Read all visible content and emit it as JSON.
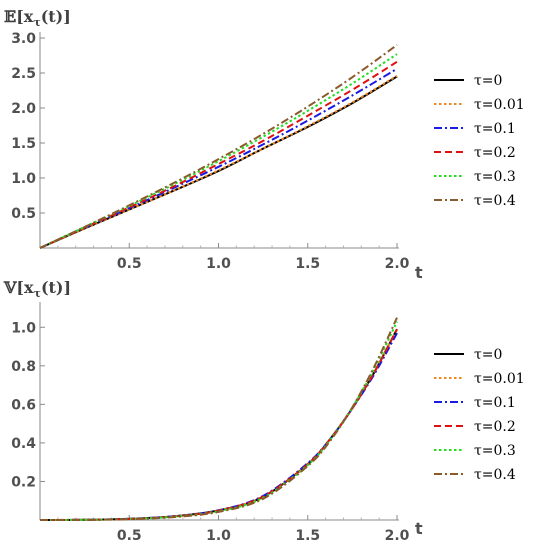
{
  "chart_data": [
    {
      "type": "line",
      "title": "𝔼[x",
      "title_sub": "τ",
      "title_end": "(t)]",
      "xlabel": "t",
      "xlim": [
        0,
        2.0
      ],
      "ylim": [
        0,
        3.0
      ],
      "x_ticks": [
        0.5,
        1.0,
        1.5,
        2.0
      ],
      "x_tick_labels": [
        "0.5",
        "1.0",
        "1.5",
        "2.0"
      ],
      "y_ticks": [
        0.5,
        1.0,
        1.5,
        2.0,
        2.5,
        3.0
      ],
      "y_tick_labels": [
        "0.5",
        "1.0",
        "1.5",
        "2.0",
        "2.5",
        "3.0"
      ],
      "legend_position": "right",
      "x": [
        0,
        0.25,
        0.5,
        0.75,
        1.0,
        1.25,
        1.5,
        1.75,
        2.0
      ],
      "series": [
        {
          "name": "τ=0",
          "color": "#000000",
          "dash": "solid",
          "values": [
            0,
            0.28,
            0.55,
            0.82,
            1.1,
            1.42,
            1.73,
            2.07,
            2.45
          ]
        },
        {
          "name": "τ=0.01",
          "color": "#ee8822",
          "dash": "dotted",
          "values": [
            0,
            0.28,
            0.55,
            0.82,
            1.11,
            1.42,
            1.74,
            2.08,
            2.46
          ]
        },
        {
          "name": "τ=0.1",
          "color": "#1a1ae6",
          "dash": "dashdot",
          "values": [
            0,
            0.29,
            0.57,
            0.86,
            1.16,
            1.48,
            1.82,
            2.18,
            2.56
          ]
        },
        {
          "name": "τ=0.2",
          "color": "#dd1111",
          "dash": "dashed",
          "values": [
            0,
            0.29,
            0.58,
            0.88,
            1.2,
            1.53,
            1.89,
            2.26,
            2.66
          ]
        },
        {
          "name": "τ=0.3",
          "color": "#22dd22",
          "dash": "dotted",
          "values": [
            0,
            0.3,
            0.6,
            0.91,
            1.24,
            1.59,
            1.96,
            2.35,
            2.77
          ]
        },
        {
          "name": "τ=0.4",
          "color": "#8b5a2b",
          "dash": "dashdot",
          "values": [
            0,
            0.3,
            0.61,
            0.93,
            1.27,
            1.63,
            2.02,
            2.44,
            2.9
          ]
        }
      ]
    },
    {
      "type": "line",
      "title": "𝕍[x",
      "title_sub": "τ",
      "title_end": "(t)]",
      "xlabel": "t",
      "xlim": [
        0,
        2.0
      ],
      "ylim": [
        0,
        1.1
      ],
      "x_ticks": [
        0.5,
        1.0,
        1.5,
        2.0
      ],
      "x_tick_labels": [
        "0.5",
        "1.0",
        "1.5",
        "2.0"
      ],
      "y_ticks": [
        0.2,
        0.4,
        0.6,
        0.8,
        1.0
      ],
      "y_tick_labels": [
        "0.2",
        "0.4",
        "0.6",
        "0.8",
        "1.0"
      ],
      "legend_position": "right",
      "x": [
        0,
        0.25,
        0.5,
        0.75,
        1.0,
        1.25,
        1.5,
        1.625,
        1.75,
        1.875,
        2.0
      ],
      "series": [
        {
          "name": "τ=0",
          "color": "#000000",
          "dash": "solid",
          "values": [
            0,
            0.001,
            0.006,
            0.019,
            0.05,
            0.12,
            0.29,
            0.42,
            0.58,
            0.77,
            0.99
          ]
        },
        {
          "name": "τ=0.01",
          "color": "#ee8822",
          "dash": "dotted",
          "values": [
            0,
            0.001,
            0.006,
            0.019,
            0.05,
            0.12,
            0.29,
            0.42,
            0.58,
            0.77,
            0.99
          ]
        },
        {
          "name": "τ=0.1",
          "color": "#1a1ae6",
          "dash": "dashdot",
          "values": [
            0,
            0.001,
            0.006,
            0.019,
            0.05,
            0.125,
            0.295,
            0.42,
            0.58,
            0.76,
            0.97
          ]
        },
        {
          "name": "τ=0.2",
          "color": "#dd1111",
          "dash": "dashed",
          "values": [
            0,
            0.001,
            0.005,
            0.018,
            0.048,
            0.122,
            0.29,
            0.42,
            0.58,
            0.77,
            0.99
          ]
        },
        {
          "name": "τ=0.3",
          "color": "#22dd22",
          "dash": "dotted",
          "values": [
            0,
            0.001,
            0.005,
            0.017,
            0.045,
            0.115,
            0.285,
            0.415,
            0.585,
            0.79,
            1.03
          ]
        },
        {
          "name": "τ=0.4",
          "color": "#8b5a2b",
          "dash": "dashdot",
          "values": [
            0,
            0.001,
            0.004,
            0.015,
            0.042,
            0.11,
            0.28,
            0.41,
            0.585,
            0.8,
            1.05
          ]
        }
      ]
    }
  ]
}
